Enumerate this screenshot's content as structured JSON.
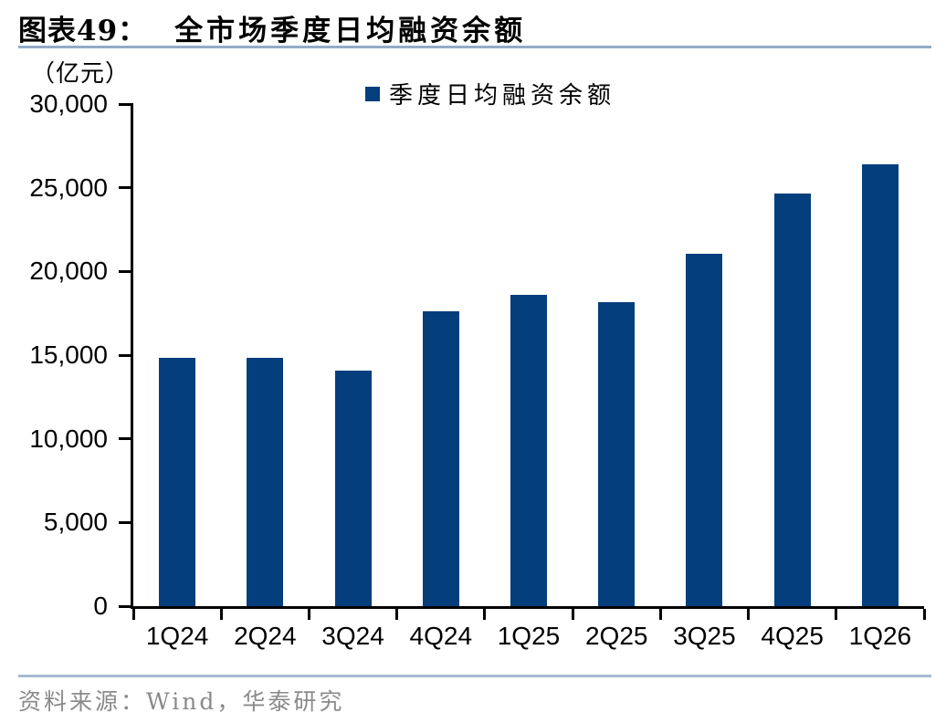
{
  "header": {
    "title_label": "图表49：",
    "title_text": "全市场季度日均融资余额"
  },
  "unit_label": "（亿元）",
  "footer": {
    "source_text": "资料来源：Wind，华泰研究"
  },
  "colors": {
    "bar": "#043E7C",
    "title_rule": "#93ABC6",
    "footer_rule": "#A6BAD0",
    "axis": "#000000",
    "footer_text": "#8A8A8A"
  },
  "chart_data": {
    "type": "bar",
    "title": "全市场季度日均融资余额",
    "unit": "亿元",
    "categories": [
      "1Q24",
      "2Q24",
      "3Q24",
      "4Q24",
      "1Q25",
      "2Q25",
      "3Q25",
      "4Q25",
      "1Q26"
    ],
    "series": [
      {
        "name": "季度日均融资余额",
        "values": [
          14850,
          14850,
          14050,
          17600,
          18600,
          18150,
          21050,
          24650,
          26400
        ]
      }
    ],
    "ylim": [
      0,
      30000
    ],
    "ytick_step": 5000,
    "yticks": [
      "0",
      "5,000",
      "10,000",
      "15,000",
      "20,000",
      "25,000",
      "30,000"
    ],
    "xlabel": "",
    "ylabel": "（亿元）",
    "legend_position": "top",
    "grid": false
  }
}
